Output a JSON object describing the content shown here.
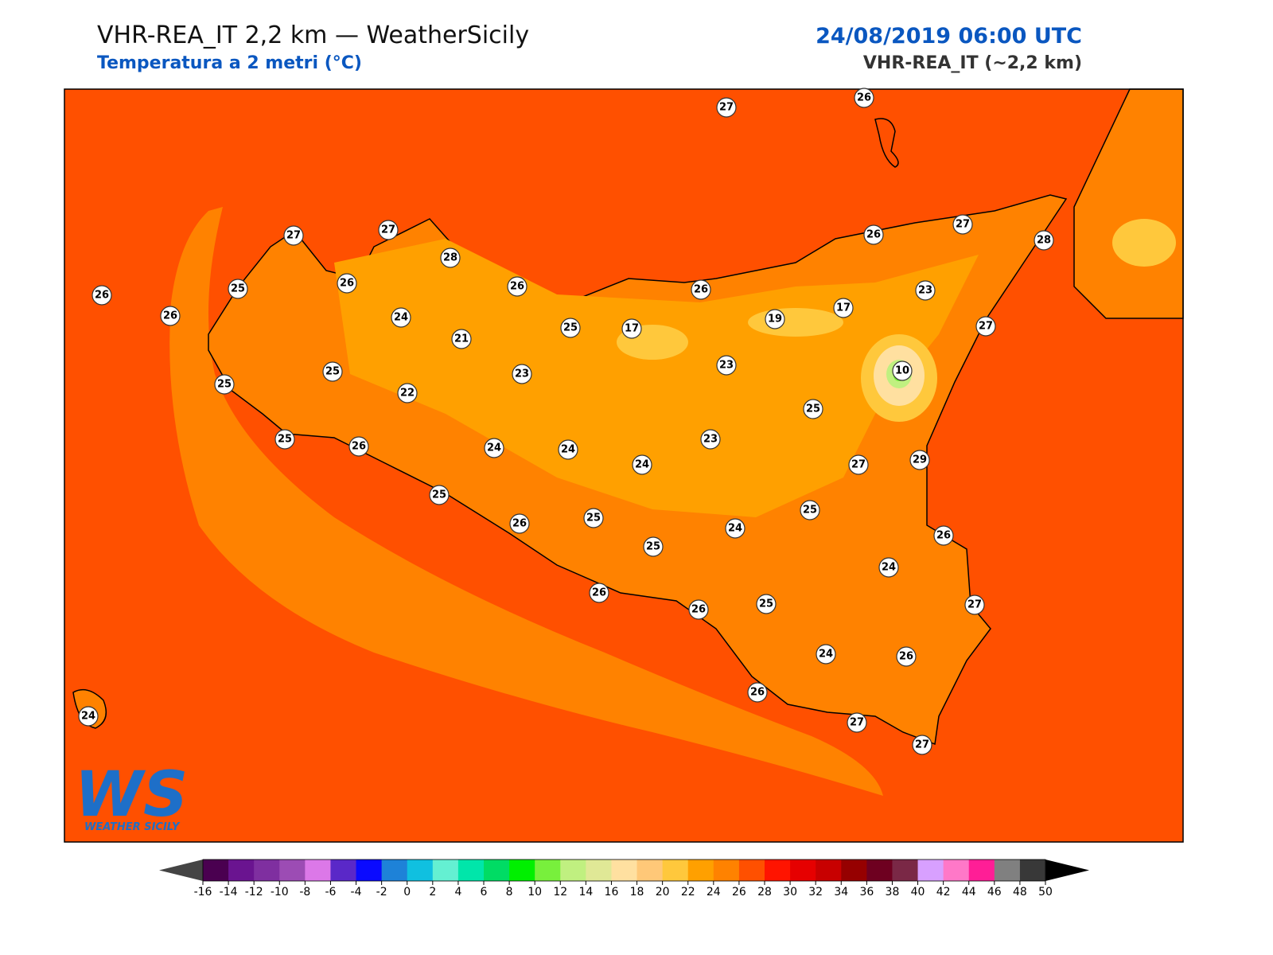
{
  "header": {
    "title": "VHR-REA_IT 2,2 km — WeatherSicily",
    "subtitle": "Temperatura a 2 metri (°C)",
    "datetime": "24/08/2019 06:00 UTC",
    "model": "VHR-REA_IT (~2,2 km)"
  },
  "stations": [
    27,
    26,
    27,
    27,
    28,
    26,
    25,
    26,
    26,
    26,
    24,
    21,
    25,
    17,
    26,
    19,
    17,
    26,
    27,
    28,
    23,
    27,
    25,
    25,
    23,
    22,
    23,
    10,
    25,
    25,
    26,
    24,
    24,
    24,
    23,
    27,
    29,
    25,
    26,
    25,
    25,
    24,
    25,
    26,
    24,
    26,
    26,
    25,
    27,
    24,
    26,
    26,
    27,
    27,
    24
  ],
  "colorbar": {
    "ticks": [
      -16,
      -14,
      -12,
      -10,
      -8,
      -6,
      -4,
      -2,
      0,
      2,
      4,
      6,
      8,
      10,
      12,
      14,
      16,
      18,
      20,
      22,
      24,
      26,
      28,
      30,
      32,
      34,
      36,
      38,
      40,
      42,
      44,
      46,
      48,
      50
    ],
    "colors": [
      "#4a0050",
      "#6a1490",
      "#7f2fa0",
      "#9c4cb4",
      "#dc78e8",
      "#5a28c8",
      "#0a0aff",
      "#1e82d8",
      "#10c0e0",
      "#64f0d2",
      "#00e6aa",
      "#00dc64",
      "#00f000",
      "#78f03c",
      "#c0f080",
      "#e0e896",
      "#ffe0a0",
      "#ffc878",
      "#ffc83c",
      "#ffa000",
      "#ff8200",
      "#ff5000",
      "#ff1400",
      "#e60000",
      "#c80000",
      "#960000",
      "#6e0020",
      "#7a2846",
      "#d8a0ff",
      "#ff78c8",
      "#ff1e96",
      "#808080",
      "#383838"
    ],
    "under_color": "#444444",
    "over_color": "#000000"
  },
  "logo": {
    "mark": "WS",
    "text": "WEATHER SICILY"
  }
}
